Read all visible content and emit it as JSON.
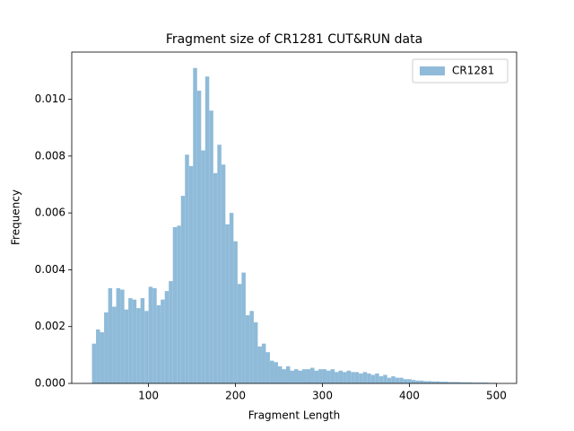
{
  "chart_data": {
    "type": "histogram",
    "title": "Fragment size of CR1281 CUT&RUN data",
    "xlabel": "Fragment Length",
    "ylabel": "Frequency",
    "bins": [
      35,
      39.65,
      44.3,
      48.95,
      53.6,
      58.25,
      62.9,
      67.55,
      72.2,
      76.85,
      81.5,
      86.15,
      90.8,
      95.45,
      100.1,
      104.75,
      109.4,
      114.05,
      118.7,
      123.35,
      128,
      132.65,
      137.3,
      141.95,
      146.6,
      151.25,
      155.9,
      160.55,
      165.2,
      169.85,
      174.5,
      179.15,
      183.8,
      188.45,
      193.1,
      197.75,
      202.4,
      207.05,
      211.7,
      216.35,
      221,
      225.65,
      230.3,
      234.95,
      239.6,
      244.25,
      248.9,
      253.55,
      258.2,
      262.85,
      267.5,
      272.15,
      276.8,
      281.45,
      286.1,
      290.75,
      295.4,
      300.05,
      304.7,
      309.35,
      314,
      318.65,
      323.3,
      327.95,
      332.6,
      337.25,
      341.9,
      346.55,
      351.2,
      355.85,
      360.5,
      365.15,
      369.8,
      374.45,
      379.1,
      383.75,
      388.4,
      393.05,
      397.7,
      402.35,
      407,
      411.65,
      416.3,
      420.95,
      425.6,
      430.25,
      434.9,
      439.55,
      444.2,
      448.85,
      453.5,
      458.15,
      462.8,
      467.45,
      472.1,
      476.75,
      481.4,
      486.05,
      490.7,
      495.35,
      500
    ],
    "series": [
      {
        "name": "CR1281",
        "color": "#8fbbd9",
        "values": [
          0.0014,
          0.0019,
          0.0018,
          0.0025,
          0.00335,
          0.0027,
          0.00335,
          0.0033,
          0.0026,
          0.003,
          0.00295,
          0.00265,
          0.003,
          0.00255,
          0.0034,
          0.00335,
          0.00275,
          0.00295,
          0.00325,
          0.0036,
          0.0055,
          0.00555,
          0.0066,
          0.00805,
          0.00765,
          0.0111,
          0.0103,
          0.0082,
          0.0108,
          0.0096,
          0.0074,
          0.0084,
          0.0077,
          0.0056,
          0.006,
          0.005,
          0.0035,
          0.0039,
          0.0024,
          0.00255,
          0.00215,
          0.0013,
          0.0014,
          0.0011,
          0.0008,
          0.00075,
          0.0006,
          0.0005,
          0.0006,
          0.00045,
          0.0005,
          0.00045,
          0.0005,
          0.0005,
          0.00055,
          0.00045,
          0.0005,
          0.0005,
          0.00045,
          0.0005,
          0.0004,
          0.00045,
          0.0004,
          0.00045,
          0.0004,
          0.0004,
          0.00035,
          0.0004,
          0.00035,
          0.0003,
          0.00035,
          0.00025,
          0.0003,
          0.0002,
          0.00025,
          0.0002,
          0.0002,
          0.00015,
          0.00015,
          0.00012,
          0.0001,
          0.0001,
          8e-05,
          8e-05,
          7e-05,
          7e-05,
          6e-05,
          6e-05,
          5e-05,
          5e-05,
          5e-05,
          4e-05,
          4e-05,
          4e-05,
          3e-05,
          3e-05,
          3e-05,
          3e-05,
          2e-05,
          2e-05
        ]
      }
    ],
    "xlim": [
      11.75,
      523.25
    ],
    "ylim": [
      0,
      0.01166
    ],
    "xticks": [
      100,
      200,
      300,
      400,
      500
    ],
    "yticks": [
      {
        "value": 0,
        "label": "0.000"
      },
      {
        "value": 0.002,
        "label": "0.002"
      },
      {
        "value": 0.004,
        "label": "0.004"
      },
      {
        "value": 0.006,
        "label": "0.006"
      },
      {
        "value": 0.008,
        "label": "0.008"
      },
      {
        "value": 0.01,
        "label": "0.010"
      }
    ],
    "legend": "upper right"
  }
}
